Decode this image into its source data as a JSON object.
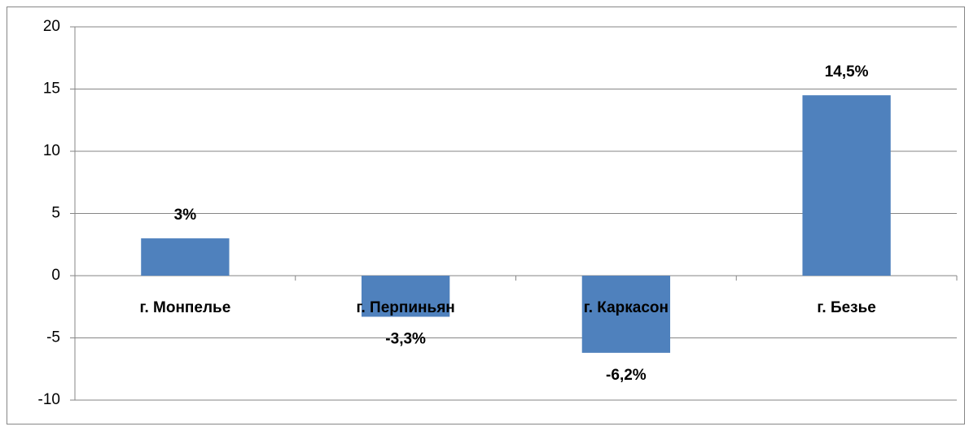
{
  "chart_data": {
    "type": "bar",
    "categories": [
      "г. Монпелье",
      "г. Перпиньян",
      "г. Каркасон",
      "г. Безье"
    ],
    "values": [
      3,
      -3.3,
      -6.2,
      14.5
    ],
    "value_labels": [
      "3%",
      "-3,3%",
      "-6,2%",
      "14,5%"
    ],
    "color": "#4f81bd",
    "ylim": [
      -10,
      20
    ],
    "yticks": [
      -10,
      -5,
      0,
      5,
      10,
      15,
      20
    ],
    "grid": true
  }
}
